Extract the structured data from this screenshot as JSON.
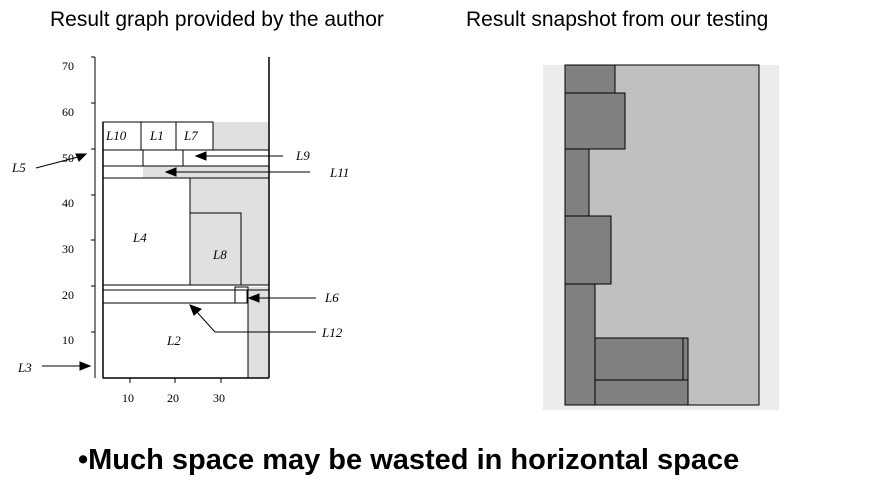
{
  "captions": {
    "left": "Result graph provided by the author",
    "right": "Result snapshot from our testing"
  },
  "bottom_note": "•Much space may be wasted in horizontal  space",
  "author_graph": {
    "y_ticks": [
      "70",
      "60",
      "50",
      "40",
      "30",
      "20",
      "10"
    ],
    "x_ticks": [
      "10",
      "20",
      "30"
    ],
    "labels": {
      "L1": "L1",
      "L2": "L2",
      "L3": "L3",
      "L4": "L4",
      "L5": "L5",
      "L6": "L6",
      "L7": "L7",
      "L8": "L8",
      "L9": "L9",
      "L10": "L10",
      "L11": "L11",
      "L12": "L12"
    }
  },
  "colors": {
    "light_gray": "#e0e0e0",
    "snapshot_background": "#c0c0c0",
    "snapshot_block": "#808080",
    "snapshot_outer": "#ececec"
  }
}
